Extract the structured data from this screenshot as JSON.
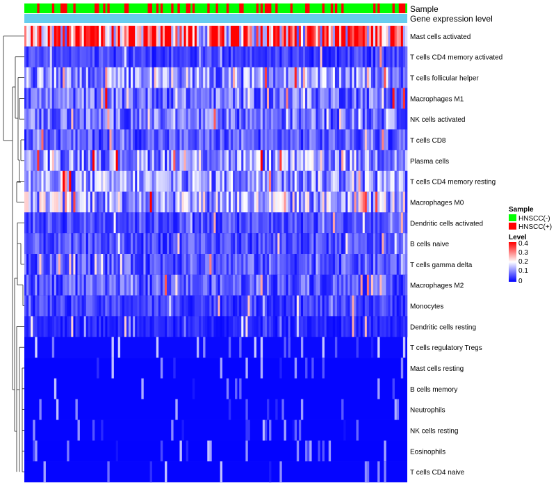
{
  "chart_data": {
    "type": "heatmap",
    "annotation_tracks": [
      "Sample",
      "Gene expression level"
    ],
    "rows": [
      {
        "name": "Mast cells activated",
        "mean": 0.32
      },
      {
        "name": "T cells CD4 memory activated",
        "mean": 0.05
      },
      {
        "name": "T cells follicular helper",
        "mean": 0.11
      },
      {
        "name": "Macrophages M1",
        "mean": 0.09
      },
      {
        "name": "NK cells activated",
        "mean": 0.09
      },
      {
        "name": "T cells CD8",
        "mean": 0.07
      },
      {
        "name": "Plasma cells",
        "mean": 0.12
      },
      {
        "name": "T cells CD4 memory resting",
        "mean": 0.12
      },
      {
        "name": "Macrophages M0",
        "mean": 0.14
      },
      {
        "name": "Dendritic cells activated",
        "mean": 0.06
      },
      {
        "name": "B cells naive",
        "mean": 0.06
      },
      {
        "name": "T cells gamma delta",
        "mean": 0.07
      },
      {
        "name": "Macrophages M2",
        "mean": 0.07
      },
      {
        "name": "Monocytes",
        "mean": 0.05
      },
      {
        "name": "Dendritic cells resting",
        "mean": 0.03
      },
      {
        "name": "T cells regulatory  Tregs",
        "mean": 0.02
      },
      {
        "name": "Mast cells resting",
        "mean": 0.01
      },
      {
        "name": "B cells memory",
        "mean": 0.01
      },
      {
        "name": "Neutrophils",
        "mean": 0.01
      },
      {
        "name": "NK cells resting",
        "mean": 0.01
      },
      {
        "name": "Eosinophils",
        "mean": 0.005
      },
      {
        "name": "T cells CD4 naive",
        "mean": 0.01
      }
    ],
    "n_samples": 180,
    "color_scale": {
      "title": "Level",
      "min": 0,
      "max": 0.4,
      "ticks": [
        "0.4",
        "0.3",
        "0.2",
        "0.1",
        "0"
      ],
      "tick_values": [
        0.4,
        0.3,
        0.2,
        0.1,
        0
      ],
      "low_color": "#0000ff",
      "mid_color": "#ffffff",
      "high_color": "#ff0000",
      "mid_value": 0.2
    },
    "sample_legend": {
      "title": "Sample",
      "entries": [
        {
          "label": "HNSCC(-)",
          "color": "#00ff00"
        },
        {
          "label": "HNSCC(+)",
          "color": "#ff0000"
        }
      ]
    },
    "expression_track_color": "#66ccee"
  }
}
